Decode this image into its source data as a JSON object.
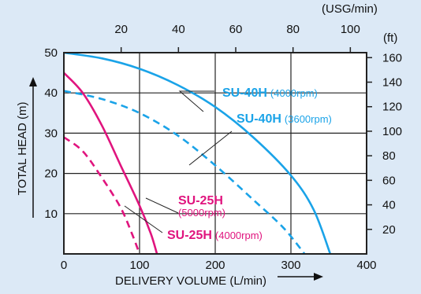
{
  "chart_data": {
    "type": "line",
    "xlabel": "DELIVERY VOLUME (L/min)",
    "ylabel": "TOTAL HEAD (m)",
    "x_top_label": "(USG/min)",
    "y_right_label": "(ft)",
    "xlim": [
      0,
      400
    ],
    "ylim": [
      0,
      50
    ],
    "grid": true,
    "x_ticks": [
      "0",
      "100",
      "200",
      "300",
      "400"
    ],
    "y_ticks": [
      "10",
      "20",
      "30",
      "40",
      "50"
    ],
    "x_top_ticks": [
      "20",
      "40",
      "60",
      "80",
      "100"
    ],
    "y_right_ticks": [
      "20",
      "40",
      "60",
      "80",
      "100",
      "120",
      "140",
      "160"
    ],
    "series": [
      {
        "name": "SU-40H",
        "speed": "(4000rpm)",
        "color": "#1aa3e8",
        "style": "solid",
        "x": [
          0,
          50,
          100,
          150,
          200,
          250,
          300,
          330,
          352
        ],
        "y": [
          50,
          48.6,
          46,
          42,
          36.5,
          29,
          19.5,
          11,
          0
        ]
      },
      {
        "name": "SU-40H",
        "speed": "(3600rpm)",
        "color": "#1aa3e8",
        "style": "dashed",
        "x": [
          0,
          50,
          100,
          150,
          200,
          250,
          290,
          318
        ],
        "y": [
          40.5,
          38.5,
          35,
          29.5,
          22,
          13.5,
          6.5,
          0
        ]
      },
      {
        "name": "SU-25H",
        "speed": "(5000rpm)",
        "color": "#e0147e",
        "style": "solid",
        "x": [
          0,
          25,
          50,
          75,
          100,
          115,
          123
        ],
        "y": [
          45,
          40,
          32,
          22,
          12,
          5,
          0
        ]
      },
      {
        "name": "SU-25H",
        "speed": "(4000rpm)",
        "color": "#e0147e",
        "style": "dashed",
        "x": [
          0,
          25,
          50,
          75,
          90,
          100
        ],
        "y": [
          29,
          25.5,
          19,
          11.5,
          5,
          0
        ]
      }
    ]
  }
}
